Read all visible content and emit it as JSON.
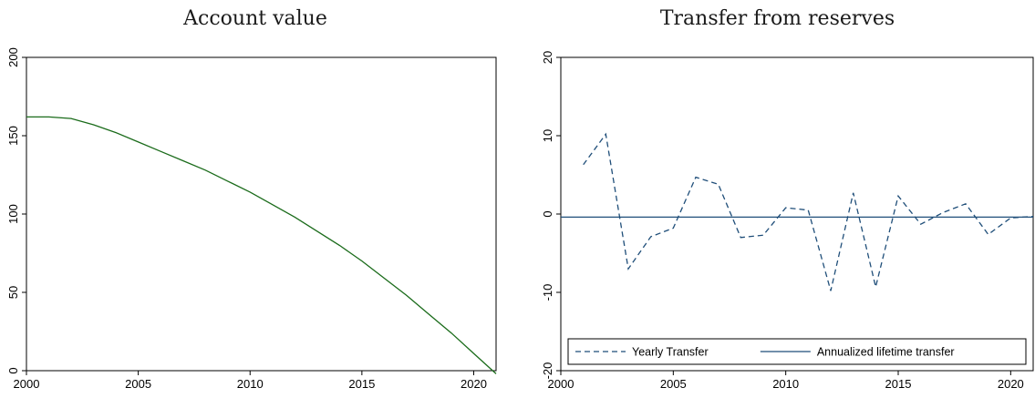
{
  "chart_data": [
    {
      "type": "line",
      "title": "Account value",
      "xlabel": "",
      "ylabel": "",
      "xlim": [
        2000,
        2021
      ],
      "ylim": [
        0,
        200
      ],
      "x_ticks": [
        2000,
        2005,
        2010,
        2015,
        2020
      ],
      "y_ticks": [
        0,
        50,
        100,
        150,
        200
      ],
      "grid": false,
      "series": [
        {
          "color": "#1a6b1a",
          "style": "solid",
          "x": [
            2000,
            2001,
            2002,
            2003,
            2004,
            2005,
            2006,
            2007,
            2008,
            2009,
            2010,
            2011,
            2012,
            2013,
            2014,
            2015,
            2016,
            2017,
            2018,
            2019,
            2020,
            2021
          ],
          "values": [
            162,
            162,
            161,
            157,
            152,
            146,
            140,
            134,
            128,
            121,
            114,
            106,
            98,
            89,
            80,
            70,
            59,
            48,
            36,
            24,
            11,
            -2
          ]
        }
      ]
    },
    {
      "type": "line",
      "title": "Transfer from reserves",
      "xlabel": "",
      "ylabel": "",
      "xlim": [
        2000,
        2021
      ],
      "ylim": [
        -20,
        20
      ],
      "x_ticks": [
        2000,
        2005,
        2010,
        2015,
        2020
      ],
      "y_ticks": [
        -20,
        -10,
        0,
        10,
        20
      ],
      "grid": false,
      "legend": "bottom",
      "series": [
        {
          "name": "Yearly Transfer",
          "color": "#1f4e79",
          "style": "dashed",
          "x": [
            2001,
            2002,
            2003,
            2004,
            2005,
            2006,
            2007,
            2008,
            2009,
            2010,
            2011,
            2012,
            2013,
            2014,
            2015,
            2016,
            2017,
            2018,
            2019,
            2020,
            2021
          ],
          "values": [
            6.3,
            10.2,
            -7.0,
            -2.9,
            -1.8,
            4.7,
            3.8,
            -3.0,
            -2.7,
            0.8,
            0.5,
            -9.8,
            2.7,
            -9.3,
            2.3,
            -1.3,
            0.2,
            1.3,
            -2.6,
            -0.5,
            -0.3
          ]
        },
        {
          "name": "Annualized lifetime transfer",
          "color": "#1f4e79",
          "style": "solid",
          "x": [
            2000,
            2021
          ],
          "values": [
            -0.4,
            -0.4
          ]
        }
      ]
    }
  ]
}
